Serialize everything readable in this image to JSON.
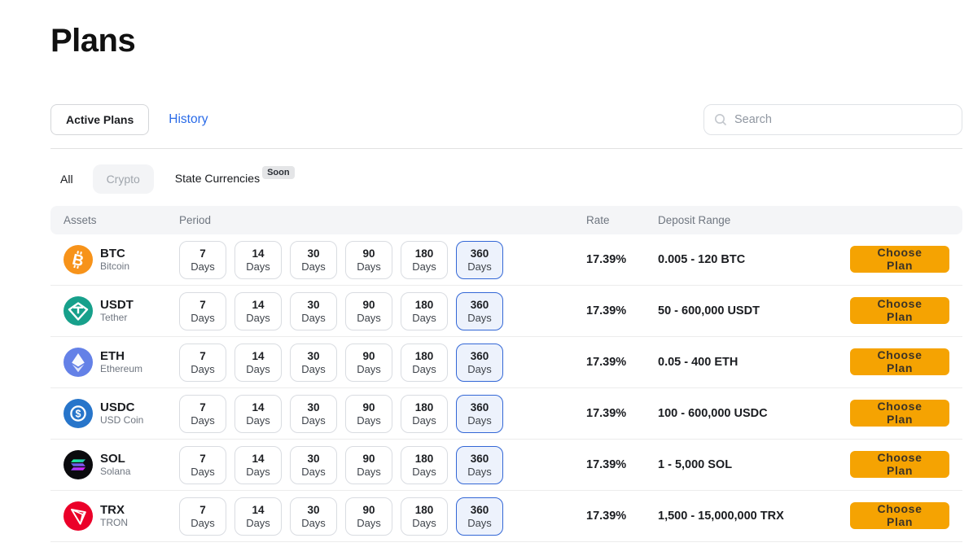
{
  "page": {
    "title": "Plans"
  },
  "tabs": {
    "active_plans": "Active Plans",
    "history": "History"
  },
  "search": {
    "placeholder": "Search"
  },
  "filters": {
    "all": "All",
    "crypto": "Crypto",
    "state_currencies": "State Currencies",
    "soon_badge": "Soon"
  },
  "table": {
    "headers": {
      "assets": "Assets",
      "period": "Period",
      "rate": "Rate",
      "deposit_range": "Deposit Range"
    },
    "periods": [
      "7",
      "14",
      "30",
      "90",
      "180",
      "360"
    ],
    "period_unit": "Days",
    "selected_period": "360",
    "choose_plan_label": "Choose Plan",
    "rows": [
      {
        "symbol": "BTC",
        "name": "Bitcoin",
        "icon": "btc-icon",
        "icon_color": "#F7931A",
        "rate": "17.39%",
        "deposit_range": "0.005 - 120 BTC"
      },
      {
        "symbol": "USDT",
        "name": "Tether",
        "icon": "usdt-icon",
        "icon_color": "#17A08B",
        "rate": "17.39%",
        "deposit_range": "50 - 600,000 USDT"
      },
      {
        "symbol": "ETH",
        "name": "Ethereum",
        "icon": "eth-icon",
        "icon_color": "#6481E7",
        "rate": "17.39%",
        "deposit_range": "0.05 - 400 ETH"
      },
      {
        "symbol": "USDC",
        "name": "USD Coin",
        "icon": "usdc-icon",
        "icon_color": "#2775CA",
        "rate": "17.39%",
        "deposit_range": "100 - 600,000 USDC"
      },
      {
        "symbol": "SOL",
        "name": "Solana",
        "icon": "sol-icon",
        "icon_color": "#0B0B0E",
        "rate": "17.39%",
        "deposit_range": "1 - 5,000 SOL"
      },
      {
        "symbol": "TRX",
        "name": "TRON",
        "icon": "trx-icon",
        "icon_color": "#EB0029",
        "rate": "17.39%",
        "deposit_range": "1,500 - 15,000,000 TRX"
      }
    ]
  },
  "colors": {
    "accent_orange": "#F5A302",
    "selected_chip_border": "#3367D6",
    "selected_chip_bg": "#EDF2FC",
    "link_blue": "#2A6BE8"
  }
}
